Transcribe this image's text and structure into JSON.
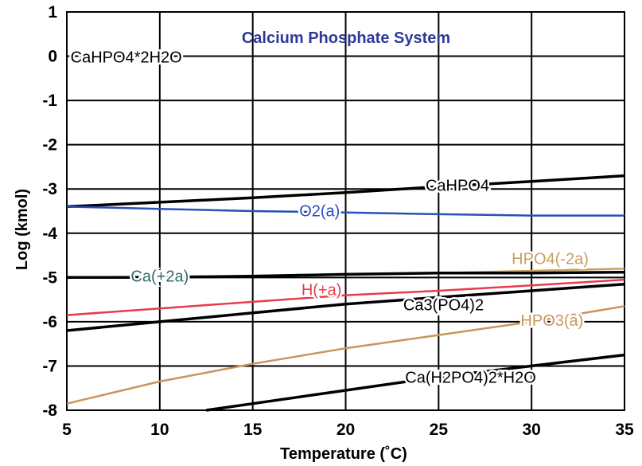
{
  "chart_data": {
    "type": "line",
    "title": "Calcium Phosphate System",
    "xlabel": "Temperature (˚C)",
    "ylabel": "Log (kmol)",
    "xlim": [
      5,
      35
    ],
    "ylim": [
      -8,
      1
    ],
    "x_ticks": [
      "5",
      "10",
      "15",
      "20",
      "25",
      "30",
      "35"
    ],
    "y_ticks": [
      "1",
      "0",
      "-1",
      "-2",
      "-3",
      "-4",
      "-5",
      "-6",
      "-7",
      "-8"
    ],
    "grid": true,
    "legend": "inline labels",
    "title_color": "#2e3a9a",
    "series": [
      {
        "name": "CaHPO4",
        "label": "CaHPO4",
        "color": "#000000",
        "x": [
          5,
          10,
          15,
          20,
          25,
          30,
          35
        ],
        "y": [
          -3.4,
          -3.3,
          -3.2,
          -3.08,
          -2.95,
          -2.83,
          -2.7
        ]
      },
      {
        "name": "O2(a)",
        "label": "O2(a)",
        "color": "#2a4fb5",
        "x": [
          5,
          10,
          15,
          20,
          25,
          30,
          35
        ],
        "y": [
          -3.4,
          -3.45,
          -3.5,
          -3.53,
          -3.57,
          -3.6,
          -3.6
        ]
      },
      {
        "name": "HPO4(-2a)",
        "label": "HPO4(-2a)",
        "color": "#c8a060",
        "x": [
          5,
          10,
          15,
          20,
          25,
          30,
          35
        ],
        "y": [
          -5.0,
          -4.98,
          -4.96,
          -4.93,
          -4.9,
          -4.85,
          -4.8
        ]
      },
      {
        "name": "Ca(+2a)",
        "label": "Ca(+2a)",
        "color": "#000000",
        "x": [
          5,
          10,
          15,
          20,
          25,
          30,
          35
        ],
        "y": [
          -5.0,
          -5.0,
          -4.97,
          -4.93,
          -4.9,
          -4.9,
          -4.88
        ]
      },
      {
        "name": "H(+a)",
        "label": "H(+a)",
        "color": "#e83c4a",
        "x": [
          5,
          10,
          15,
          20,
          25,
          30,
          35
        ],
        "y": [
          -5.85,
          -5.7,
          -5.55,
          -5.4,
          -5.3,
          -5.18,
          -5.05
        ]
      },
      {
        "name": "Ca3(PO4)2",
        "label": "Ca3(PO4)2",
        "color": "#000000",
        "x": [
          5,
          10,
          15,
          20,
          25,
          30,
          35
        ],
        "y": [
          -6.2,
          -6.0,
          -5.8,
          -5.6,
          -5.45,
          -5.3,
          -5.15
        ]
      },
      {
        "name": "HPO3(a)",
        "label": "HPO3(a)",
        "color": "#c8965a",
        "x": [
          5,
          10,
          15,
          20,
          25,
          30,
          35
        ],
        "y": [
          -7.85,
          -7.35,
          -6.95,
          -6.6,
          -6.3,
          -6.0,
          -5.65
        ]
      },
      {
        "name": "Ca(H2PO4)2*H2O",
        "label": "Ca(H2PO4)2*H2O",
        "color": "#000000",
        "x": [
          12.5,
          15,
          20,
          25,
          30,
          35
        ],
        "y": [
          -8.0,
          -7.85,
          -7.55,
          -7.25,
          -7.0,
          -6.75
        ]
      }
    ],
    "annotations": [
      {
        "text": "CaHPO4*2H2O",
        "color": "#000000"
      }
    ]
  }
}
